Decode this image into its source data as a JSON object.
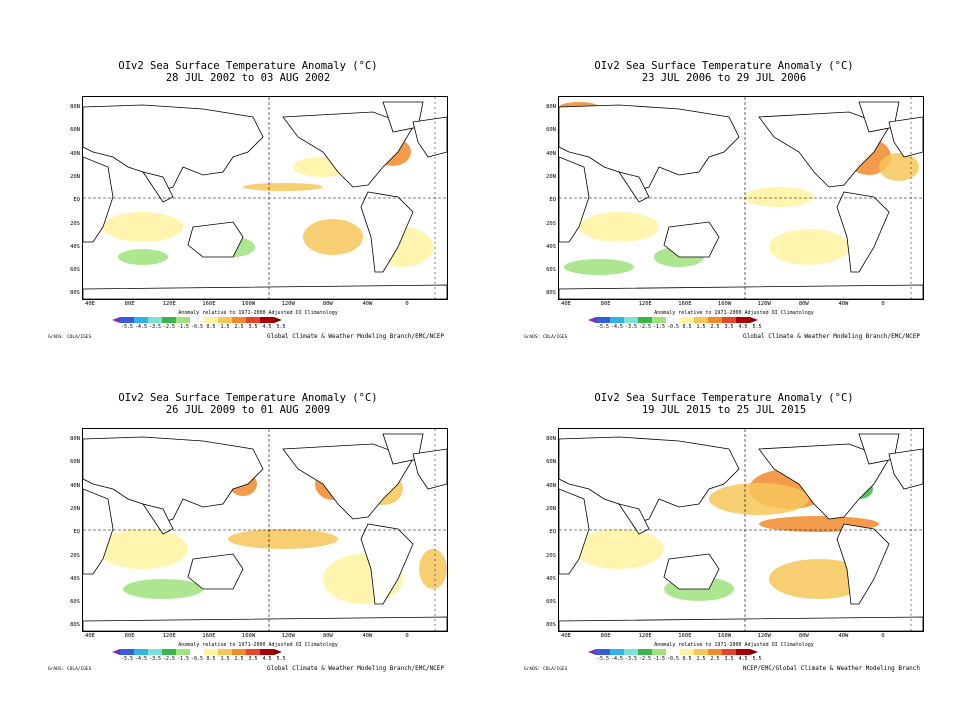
{
  "panels": [
    {
      "title_line1": "OIv2 Sea Surface Temperature Anomaly (°C)",
      "title_line2": "28 JUL 2002 to 03 AUG 2002",
      "credit": "Global Climate & Weather Modeling Branch/EMC/NCEP"
    },
    {
      "title_line1": "OIv2 Sea Surface Temperature Anomaly (°C)",
      "title_line2": "23 JUL 2006 to 29 JUL 2006",
      "credit": "Global Climate & Weather Modeling Branch/EMC/NCEP"
    },
    {
      "title_line1": "OIv2 Sea Surface Temperature Anomaly (°C)",
      "title_line2": "26 JUL 2009 to 01 AUG 2009",
      "credit": "Global Climate & Weather Modeling Branch/EMC/NCEP"
    },
    {
      "title_line1": "OIv2 Sea Surface Temperature Anomaly (°C)",
      "title_line2": "19 JUL 2015 to 25 JUL 2015",
      "credit": "NCEP/EMC/Global Climate & Weather Modeling Branch"
    }
  ],
  "lat_labels": [
    "80N",
    "60N",
    "40N",
    "20N",
    "EQ",
    "20S",
    "40S",
    "60S",
    "80S"
  ],
  "lon_labels": [
    "40E",
    "80E",
    "120E",
    "160E",
    "160W",
    "120W",
    "80W",
    "40W",
    "0"
  ],
  "colorbar_note": "Anomaly relative to 1971-2000 Adjusted OI Climatology",
  "colorbar_labels": [
    "-5.5",
    "-4.5",
    "-3.5",
    "-2.5",
    "-1.5",
    "-0.5",
    "0.5",
    "1.5",
    "2.5",
    "3.5",
    "4.5",
    "5.5"
  ],
  "colorbar_colors": [
    "#7b2cbf",
    "#3a5bd9",
    "#2fb5e3",
    "#7fe0d8",
    "#39b54a",
    "#9ee37d",
    "#ffffff",
    "#fff3a0",
    "#f7c65a",
    "#f08a2a",
    "#e5452a",
    "#a80000",
    "#7a0000"
  ],
  "grads_label": "GrADS: COLA/IGES"
}
